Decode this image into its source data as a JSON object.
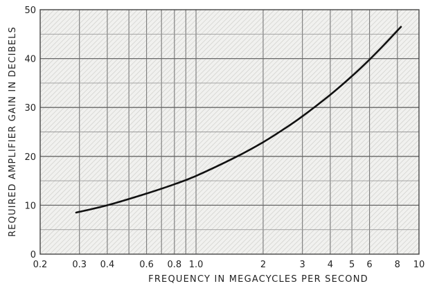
{
  "chart_data": {
    "type": "line",
    "title": "",
    "xlabel": "FREQUENCY IN MEGACYCLES PER SECOND",
    "ylabel": "REQUIRED AMPLIFIER GAIN IN DECIBELS",
    "x_scale": "log",
    "xlim": [
      0.2,
      10
    ],
    "ylim": [
      0,
      50
    ],
    "grid": true,
    "x_ticks": [
      {
        "value": 0.2,
        "label": "0.2"
      },
      {
        "value": 0.3,
        "label": "0.3"
      },
      {
        "value": 0.4,
        "label": "0.4"
      },
      {
        "value": 0.6,
        "label": "0.6"
      },
      {
        "value": 0.8,
        "label": "0.8"
      },
      {
        "value": 1.0,
        "label": "1.0"
      },
      {
        "value": 2,
        "label": "2"
      },
      {
        "value": 3,
        "label": "3"
      },
      {
        "value": 4,
        "label": "4"
      },
      {
        "value": 5,
        "label": "5"
      },
      {
        "value": 6,
        "label": "6"
      },
      {
        "value": 8,
        "label": "8"
      },
      {
        "value": 10,
        "label": "10"
      }
    ],
    "y_ticks": [
      {
        "value": 0,
        "label": "0"
      },
      {
        "value": 10,
        "label": "10"
      },
      {
        "value": 20,
        "label": "20"
      },
      {
        "value": 30,
        "label": "30"
      },
      {
        "value": 40,
        "label": "40"
      },
      {
        "value": 50,
        "label": "50"
      }
    ],
    "x_minor_grid": [
      0.5,
      0.7,
      0.9
    ],
    "series": [
      {
        "color": "#111111",
        "x": [
          0.29,
          0.4,
          0.6,
          0.8,
          1.0,
          1.5,
          2.0,
          2.5,
          3.0,
          4.0,
          5.0,
          6.0,
          7.0,
          8.3
        ],
        "y": [
          8.5,
          10.0,
          12.4,
          14.3,
          16.0,
          19.8,
          22.9,
          25.7,
          28.2,
          32.6,
          36.4,
          39.8,
          42.9,
          46.5
        ]
      }
    ]
  }
}
